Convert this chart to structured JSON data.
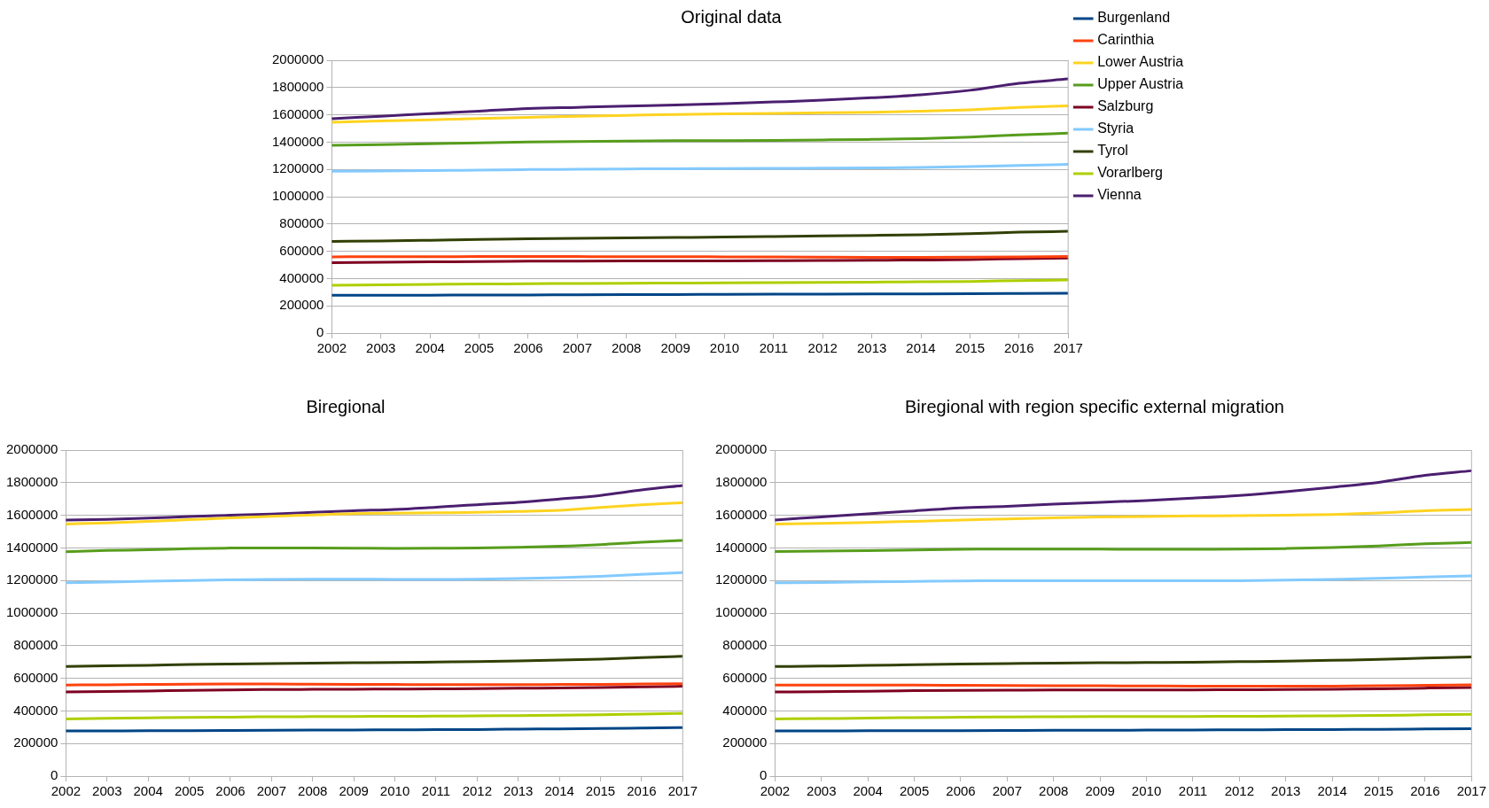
{
  "chart_data": [
    {
      "type": "line",
      "title": "Original data",
      "categories": [
        "2002",
        "2003",
        "2004",
        "2005",
        "2006",
        "2007",
        "2008",
        "2009",
        "2010",
        "2011",
        "2012",
        "2013",
        "2014",
        "2015",
        "2016",
        "2017"
      ],
      "ylim": [
        0,
        2000000
      ],
      "yticks": [
        0,
        200000,
        400000,
        600000,
        800000,
        1000000,
        1200000,
        1400000,
        1600000,
        1800000,
        2000000
      ],
      "grid": "y",
      "legend": "right",
      "series": [
        {
          "name": "Burgenland",
          "color": "#004586",
          "values": [
            277000,
            277000,
            278000,
            279000,
            280000,
            281000,
            282000,
            283000,
            284000,
            285000,
            286000,
            287000,
            288000,
            289000,
            291000,
            292000
          ]
        },
        {
          "name": "Carinthia",
          "color": "#ff420e",
          "values": [
            559000,
            560000,
            560000,
            561000,
            561000,
            561000,
            560000,
            560000,
            559000,
            558000,
            557000,
            556000,
            556000,
            557000,
            559000,
            561000
          ]
        },
        {
          "name": "Lower Austria",
          "color": "#ffd320",
          "values": [
            1546000,
            1556000,
            1563000,
            1573000,
            1581000,
            1589000,
            1596000,
            1603000,
            1607000,
            1611000,
            1615000,
            1618000,
            1626000,
            1637000,
            1654000,
            1666000
          ]
        },
        {
          "name": "Upper Austria",
          "color": "#579d1c",
          "values": [
            1377000,
            1382000,
            1388000,
            1395000,
            1401000,
            1405000,
            1408000,
            1410000,
            1411000,
            1413000,
            1416000,
            1420000,
            1426000,
            1437000,
            1453000,
            1466000
          ]
        },
        {
          "name": "Salzburg",
          "color": "#7e0021",
          "values": [
            516000,
            519000,
            522000,
            525000,
            527000,
            528000,
            529000,
            530000,
            530000,
            531000,
            532000,
            534000,
            536000,
            539000,
            546000,
            551000
          ]
        },
        {
          "name": "Styria",
          "color": "#83caff",
          "values": [
            1186000,
            1188000,
            1191000,
            1195000,
            1199000,
            1201000,
            1203000,
            1205000,
            1206000,
            1208000,
            1209000,
            1211000,
            1214000,
            1220000,
            1229000,
            1237000
          ]
        },
        {
          "name": "Tyrol",
          "color": "#314004",
          "values": [
            672000,
            676000,
            681000,
            686000,
            691000,
            695000,
            698000,
            701000,
            704000,
            708000,
            712000,
            716000,
            721000,
            729000,
            740000,
            746000
          ]
        },
        {
          "name": "Vorarlberg",
          "color": "#aecf00",
          "values": [
            351000,
            354000,
            357000,
            360000,
            362000,
            364000,
            366000,
            367000,
            368000,
            370000,
            372000,
            374000,
            376000,
            379000,
            385000,
            389000
          ]
        },
        {
          "name": "Vienna",
          "color": "#4b1f6f",
          "values": [
            1571000,
            1590000,
            1609000,
            1627000,
            1646000,
            1655000,
            1664000,
            1672000,
            1682000,
            1694000,
            1707000,
            1725000,
            1747000,
            1780000,
            1831000,
            1863000
          ]
        }
      ]
    },
    {
      "type": "line",
      "title": "Biregional",
      "categories": [
        "2002",
        "2003",
        "2004",
        "2005",
        "2006",
        "2007",
        "2008",
        "2009",
        "2010",
        "2011",
        "2012",
        "2013",
        "2014",
        "2015",
        "2016",
        "2017"
      ],
      "ylim": [
        0,
        2000000
      ],
      "yticks": [
        0,
        200000,
        400000,
        600000,
        800000,
        1000000,
        1200000,
        1400000,
        1600000,
        1800000,
        2000000
      ],
      "grid": "y",
      "series": [
        {
          "color": "#004586",
          "values": [
            277000,
            277000,
            278000,
            279000,
            280000,
            281000,
            282000,
            283000,
            284000,
            285000,
            286000,
            288000,
            290000,
            292000,
            295000,
            298000
          ]
        },
        {
          "color": "#ff420e",
          "values": [
            559000,
            560000,
            562000,
            564000,
            565000,
            565000,
            564000,
            563000,
            562000,
            561000,
            561000,
            561000,
            562000,
            563000,
            565000,
            567000
          ]
        },
        {
          "color": "#ffd320",
          "values": [
            1546000,
            1553000,
            1562000,
            1573000,
            1584000,
            1594000,
            1602000,
            1610000,
            1613000,
            1615000,
            1618000,
            1623000,
            1630000,
            1648000,
            1664000,
            1677000
          ]
        },
        {
          "color": "#579d1c",
          "values": [
            1377000,
            1384000,
            1388000,
            1395000,
            1399000,
            1400000,
            1399000,
            1398000,
            1397000,
            1398000,
            1400000,
            1404000,
            1410000,
            1420000,
            1435000,
            1446000
          ]
        },
        {
          "color": "#7e0021",
          "values": [
            516000,
            519000,
            522000,
            526000,
            529000,
            531000,
            532000,
            533000,
            534000,
            535000,
            537000,
            539000,
            541000,
            543000,
            547000,
            551000
          ]
        },
        {
          "color": "#83caff",
          "values": [
            1186000,
            1190000,
            1195000,
            1200000,
            1204000,
            1207000,
            1208000,
            1208000,
            1207000,
            1207000,
            1208000,
            1212000,
            1218000,
            1226000,
            1238000,
            1248000
          ]
        },
        {
          "color": "#314004",
          "values": [
            672000,
            676000,
            680000,
            685000,
            688000,
            690000,
            693000,
            695000,
            697000,
            700000,
            703000,
            707000,
            712000,
            718000,
            727000,
            735000
          ]
        },
        {
          "color": "#aecf00",
          "values": [
            351000,
            354000,
            357000,
            360000,
            362000,
            364000,
            365000,
            366000,
            367000,
            368000,
            369000,
            371000,
            373000,
            376000,
            381000,
            385000
          ]
        },
        {
          "color": "#4b1f6f",
          "values": [
            1571000,
            1575000,
            1583000,
            1592000,
            1600000,
            1608000,
            1618000,
            1628000,
            1636000,
            1650000,
            1665000,
            1680000,
            1700000,
            1722000,
            1755000,
            1783000
          ]
        }
      ]
    },
    {
      "type": "line",
      "title": "Biregional with region specific external migration",
      "categories": [
        "2002",
        "2003",
        "2004",
        "2005",
        "2006",
        "2007",
        "2008",
        "2009",
        "2010",
        "2011",
        "2012",
        "2013",
        "2014",
        "2015",
        "2016",
        "2017"
      ],
      "ylim": [
        0,
        2000000
      ],
      "yticks": [
        0,
        200000,
        400000,
        600000,
        800000,
        1000000,
        1200000,
        1400000,
        1600000,
        1800000,
        2000000
      ],
      "grid": "y",
      "series": [
        {
          "color": "#004586",
          "values": [
            277000,
            277000,
            278000,
            278000,
            279000,
            280000,
            281000,
            281000,
            282000,
            283000,
            284000,
            285000,
            286000,
            287000,
            289000,
            291000
          ]
        },
        {
          "color": "#ff420e",
          "values": [
            559000,
            559000,
            558000,
            558000,
            557000,
            556000,
            555000,
            554000,
            553000,
            552000,
            551000,
            551000,
            552000,
            554000,
            557000,
            560000
          ]
        },
        {
          "color": "#ffd320",
          "values": [
            1546000,
            1550000,
            1556000,
            1563000,
            1570000,
            1578000,
            1584000,
            1589000,
            1593000,
            1596000,
            1598000,
            1601000,
            1605000,
            1614000,
            1628000,
            1636000
          ]
        },
        {
          "color": "#579d1c",
          "values": [
            1377000,
            1380000,
            1383000,
            1387000,
            1391000,
            1393000,
            1393000,
            1392000,
            1391000,
            1391000,
            1392000,
            1396000,
            1402000,
            1412000,
            1425000,
            1433000
          ]
        },
        {
          "color": "#7e0021",
          "values": [
            516000,
            518000,
            521000,
            524000,
            526000,
            527000,
            528000,
            528000,
            528000,
            529000,
            530000,
            531000,
            533000,
            536000,
            540000,
            544000
          ]
        },
        {
          "color": "#83caff",
          "values": [
            1186000,
            1188000,
            1191000,
            1194000,
            1197000,
            1199000,
            1199000,
            1199000,
            1198000,
            1198000,
            1199000,
            1203000,
            1207000,
            1213000,
            1221000,
            1228000
          ]
        },
        {
          "color": "#314004",
          "values": [
            672000,
            675000,
            679000,
            683000,
            687000,
            690000,
            693000,
            695000,
            697000,
            699000,
            702000,
            705000,
            710000,
            716000,
            724000,
            731000
          ]
        },
        {
          "color": "#aecf00",
          "values": [
            351000,
            353000,
            356000,
            359000,
            361000,
            363000,
            364000,
            365000,
            365000,
            366000,
            367000,
            368000,
            370000,
            372000,
            376000,
            379000
          ]
        },
        {
          "color": "#4b1f6f",
          "values": [
            1571000,
            1590000,
            1609000,
            1627000,
            1646000,
            1655000,
            1668000,
            1680000,
            1690000,
            1705000,
            1722000,
            1745000,
            1772000,
            1802000,
            1845000,
            1873000
          ]
        }
      ]
    }
  ]
}
